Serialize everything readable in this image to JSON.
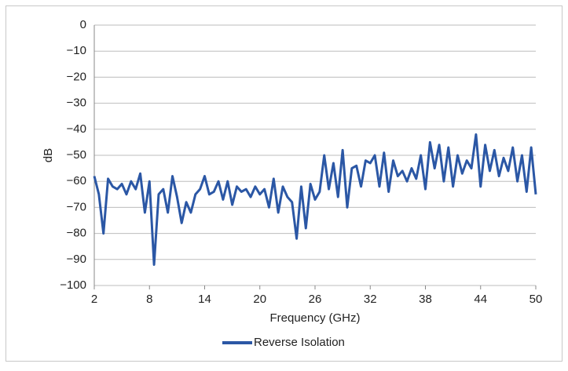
{
  "chart_data": {
    "type": "line",
    "x_label": "Frequency (GHz)",
    "y_label": "dB",
    "x": [
      2,
      2.5,
      3,
      3.5,
      4,
      4.5,
      5,
      5.5,
      6,
      6.5,
      7,
      7.5,
      8,
      8.5,
      9,
      9.5,
      10,
      10.5,
      11,
      11.5,
      12,
      12.5,
      13,
      13.5,
      14,
      14.5,
      15,
      15.5,
      16,
      16.5,
      17,
      17.5,
      18,
      18.5,
      19,
      19.5,
      20,
      20.5,
      21,
      21.5,
      22,
      22.5,
      23,
      23.5,
      24,
      24.5,
      25,
      25.5,
      26,
      26.5,
      27,
      27.5,
      28,
      28.5,
      29,
      29.5,
      30,
      30.5,
      31,
      31.5,
      32,
      32.5,
      33,
      33.5,
      34,
      34.5,
      35,
      35.5,
      36,
      36.5,
      37,
      37.5,
      38,
      38.5,
      39,
      39.5,
      40,
      40.5,
      41,
      41.5,
      42,
      42.5,
      43,
      43.5,
      44,
      44.5,
      45,
      45.5,
      46,
      46.5,
      47,
      47.5,
      48,
      48.5,
      49,
      49.5,
      50
    ],
    "series": [
      {
        "name": "Reverse Isolation",
        "color": "#2b57a5",
        "values": [
          -58,
          -65,
          -80,
          -59,
          -62,
          -63,
          -61,
          -65,
          -60,
          -63,
          -57,
          -72,
          -60,
          -92,
          -65,
          -63,
          -72,
          -58,
          -66,
          -76,
          -68,
          -72,
          -65,
          -63,
          -58,
          -65,
          -64,
          -60,
          -67,
          -60,
          -69,
          -62,
          -64,
          -63,
          -66,
          -62,
          -65,
          -63,
          -70,
          -59,
          -72,
          -62,
          -66,
          -68,
          -82,
          -62,
          -78,
          -61,
          -67,
          -64,
          -50,
          -63,
          -53,
          -66,
          -48,
          -70,
          -55,
          -54,
          -62,
          -52,
          -53,
          -50,
          -62,
          -49,
          -64,
          -52,
          -58,
          -56,
          -60,
          -55,
          -59,
          -50,
          -63,
          -45,
          -55,
          -46,
          -60,
          -47,
          -62,
          -50,
          -57,
          -52,
          -55,
          -42,
          -62,
          -46,
          -56,
          -48,
          -58,
          -51,
          -56,
          -47,
          -60,
          -50,
          -64,
          -47,
          -65
        ]
      }
    ],
    "xlim": [
      2,
      50
    ],
    "xticks": [
      2,
      8,
      14,
      20,
      26,
      32,
      38,
      44,
      50
    ],
    "ylim": [
      -100,
      0
    ],
    "yticks": [
      {
        "value": -100,
        "label": "−100"
      },
      {
        "value": -90,
        "label": "−90"
      },
      {
        "value": -80,
        "label": "−80"
      },
      {
        "value": -70,
        "label": "−70"
      },
      {
        "value": -60,
        "label": "−60"
      },
      {
        "value": -50,
        "label": "−50"
      },
      {
        "value": -40,
        "label": "−40"
      },
      {
        "value": -30,
        "label": "−30"
      },
      {
        "value": -20,
        "label": "−20"
      },
      {
        "value": -10,
        "label": "−10"
      },
      0
    ],
    "grid": true,
    "legend": "bottom"
  }
}
